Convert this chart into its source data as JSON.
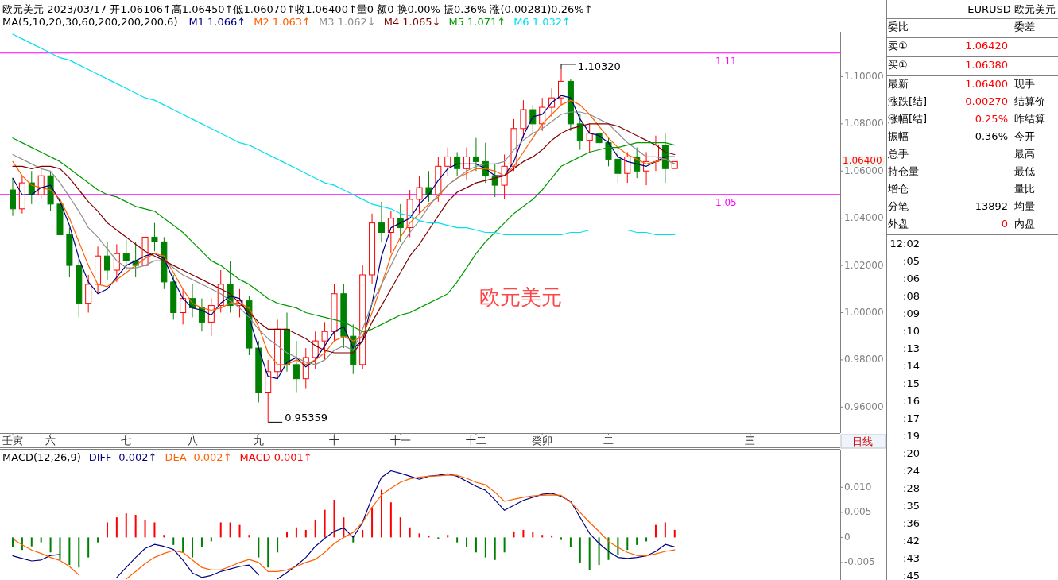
{
  "chart_data": [
    {
      "type": "candlestick",
      "title": "欧元美元 2023/03/17 开1.06106↑高1.06450↑低1.06070↑收1.06400↑量0 额0 换0.00% 振0.36% 涨(0.00281)0.26%↑",
      "subtitle": "MA(5,10,20,30,60,200,200,200,6)",
      "legend": "top",
      "categories": [
        "壬寅",
        null,
        null,
        null,
        "六",
        null,
        null,
        null,
        null,
        null,
        null,
        null,
        "七",
        null,
        null,
        null,
        null,
        null,
        null,
        "八",
        null,
        null,
        null,
        null,
        null,
        null,
        "九",
        null,
        null,
        null,
        null,
        null,
        null,
        null,
        "十",
        null,
        null,
        null,
        null,
        null,
        null,
        "十一",
        null,
        null,
        null,
        null,
        null,
        null,
        null,
        "十二",
        null,
        null,
        null,
        null,
        null,
        null,
        "癸卯",
        null,
        null,
        null,
        null,
        null,
        null,
        "二",
        null,
        null,
        null,
        null,
        null,
        null,
        null,
        null,
        null,
        null,
        null,
        null,
        null,
        null,
        "三",
        null,
        null,
        null,
        null,
        null,
        null,
        null,
        null,
        null
      ],
      "ylim": [
        0.949,
        1.119
      ],
      "yticks": [
        {
          "value": 1.1,
          "label": "1.10000"
        },
        {
          "value": 1.08,
          "label": "1.08000"
        },
        {
          "value": 1.06,
          "label": "1.06000"
        },
        {
          "value": 1.04,
          "label": "1.04000"
        },
        {
          "value": 1.02,
          "label": "1.02000"
        },
        {
          "value": 1.0,
          "label": "1.00000"
        },
        {
          "value": 0.98,
          "label": "0.98000"
        },
        {
          "value": 0.96,
          "label": "0.96000"
        }
      ],
      "ohlc": [
        [
          1.052,
          1.057,
          1.041,
          1.044
        ],
        [
          1.044,
          1.058,
          1.042,
          1.055
        ],
        [
          1.055,
          1.06,
          1.046,
          1.05
        ],
        [
          1.05,
          1.062,
          1.048,
          1.058
        ],
        [
          1.058,
          1.06,
          1.043,
          1.046
        ],
        [
          1.046,
          1.049,
          1.03,
          1.033
        ],
        [
          1.033,
          1.036,
          1.015,
          1.02
        ],
        [
          1.02,
          1.024,
          0.998,
          1.004
        ],
        [
          1.004,
          1.016,
          1.0,
          1.012
        ],
        [
          1.012,
          1.028,
          1.008,
          1.024
        ],
        [
          1.024,
          1.03,
          1.014,
          1.018
        ],
        [
          1.018,
          1.029,
          1.013,
          1.025
        ],
        [
          1.025,
          1.031,
          1.018,
          1.022
        ],
        [
          1.022,
          1.03,
          1.015,
          1.02
        ],
        [
          1.02,
          1.036,
          1.017,
          1.032
        ],
        [
          1.032,
          1.038,
          1.026,
          1.03
        ],
        [
          1.03,
          1.032,
          1.01,
          1.013
        ],
        [
          1.013,
          1.016,
          0.997,
          1.0
        ],
        [
          1.0,
          1.01,
          0.995,
          1.006
        ],
        [
          1.006,
          1.012,
          0.998,
          1.002
        ],
        [
          1.002,
          1.006,
          0.992,
          0.996
        ],
        [
          0.996,
          1.006,
          0.99,
          1.003
        ],
        [
          1.003,
          1.018,
          1.0,
          1.012
        ],
        [
          1.012,
          1.022,
          1.0,
          1.003
        ],
        [
          1.003,
          1.01,
          0.998,
          1.005
        ],
        [
          1.005,
          1.007,
          0.982,
          0.985
        ],
        [
          0.985,
          0.988,
          0.962,
          0.966
        ],
        [
          0.966,
          0.98,
          0.95359,
          0.975
        ],
        [
          0.975,
          0.997,
          0.972,
          0.993
        ],
        [
          0.993,
          1.0,
          0.975,
          0.978
        ],
        [
          0.978,
          0.988,
          0.966,
          0.972
        ],
        [
          0.972,
          0.985,
          0.968,
          0.981
        ],
        [
          0.981,
          0.992,
          0.976,
          0.988
        ],
        [
          0.988,
          0.996,
          0.98,
          0.992
        ],
        [
          0.992,
          1.012,
          0.988,
          1.008
        ],
        [
          1.008,
          1.012,
          0.985,
          0.99
        ],
        [
          0.99,
          0.995,
          0.974,
          0.978
        ],
        [
          0.978,
          1.02,
          0.976,
          1.016
        ],
        [
          1.016,
          1.042,
          1.012,
          1.038
        ],
        [
          1.038,
          1.047,
          1.03,
          1.034
        ],
        [
          1.034,
          1.043,
          1.025,
          1.04
        ],
        [
          1.04,
          1.046,
          1.03,
          1.036
        ],
        [
          1.036,
          1.052,
          1.032,
          1.048
        ],
        [
          1.048,
          1.058,
          1.042,
          1.053
        ],
        [
          1.053,
          1.06,
          1.047,
          1.05
        ],
        [
          1.05,
          1.066,
          1.047,
          1.062
        ],
        [
          1.062,
          1.07,
          1.058,
          1.066
        ],
        [
          1.066,
          1.068,
          1.058,
          1.061
        ],
        [
          1.061,
          1.07,
          1.056,
          1.066
        ],
        [
          1.066,
          1.074,
          1.06,
          1.064
        ],
        [
          1.064,
          1.072,
          1.055,
          1.058
        ],
        [
          1.058,
          1.063,
          1.049,
          1.054
        ],
        [
          1.054,
          1.067,
          1.048,
          1.062
        ],
        [
          1.062,
          1.082,
          1.06,
          1.078
        ],
        [
          1.078,
          1.09,
          1.074,
          1.086
        ],
        [
          1.086,
          1.088,
          1.076,
          1.08
        ],
        [
          1.08,
          1.091,
          1.077,
          1.087
        ],
        [
          1.087,
          1.095,
          1.083,
          1.091
        ],
        [
          1.091,
          1.1032,
          1.088,
          1.098
        ],
        [
          1.098,
          1.099,
          1.077,
          1.08
        ],
        [
          1.08,
          1.084,
          1.069,
          1.073
        ],
        [
          1.073,
          1.08,
          1.068,
          1.076
        ],
        [
          1.076,
          1.082,
          1.07,
          1.072
        ],
        [
          1.072,
          1.074,
          1.062,
          1.065
        ],
        [
          1.065,
          1.069,
          1.055,
          1.059
        ],
        [
          1.059,
          1.068,
          1.055,
          1.066
        ],
        [
          1.066,
          1.07,
          1.057,
          1.06
        ],
        [
          1.06,
          1.068,
          1.054,
          1.064
        ],
        [
          1.064,
          1.075,
          1.06,
          1.071
        ],
        [
          1.071,
          1.076,
          1.055,
          1.061
        ],
        [
          1.06106,
          1.0645,
          1.0607,
          1.064
        ],
        null,
        null,
        null,
        null,
        null,
        null,
        null,
        null,
        null,
        null,
        null,
        null,
        null,
        null,
        null,
        null,
        null
      ],
      "series": [
        {
          "name": "M1 1.066↑",
          "type": "line",
          "color": "#000080",
          "values": [
            1.057,
            1.05,
            1.05,
            1.053,
            1.054,
            1.047,
            1.037,
            1.023,
            1.013,
            1.008,
            1.01,
            1.015,
            1.02,
            1.022,
            1.024,
            1.025,
            1.023,
            1.014,
            1.006,
            1.002,
            1.001,
            0.999,
            1.004,
            1.007,
            1.006,
            0.998,
            0.985,
            0.973,
            0.972,
            0.979,
            0.981,
            0.977,
            0.98,
            0.986,
            0.992,
            0.994,
            0.985,
            0.988,
            1.004,
            1.024,
            1.036,
            1.038,
            1.04,
            1.046,
            1.05,
            1.056,
            1.061,
            1.063,
            1.063,
            1.063,
            1.061,
            1.058,
            1.058,
            1.064,
            1.075,
            1.083,
            1.084,
            1.089,
            1.092,
            1.091,
            1.082,
            1.076,
            1.075,
            1.072,
            1.066,
            1.064,
            1.063,
            1.062,
            1.064,
            1.066,
            1.066,
            null,
            null,
            null,
            null,
            null,
            null,
            null,
            null,
            null,
            null,
            null,
            null,
            null,
            null,
            null,
            null,
            null
          ]
        },
        {
          "name": "M2 1.063↑",
          "type": "line",
          "color": "#ff6000",
          "values": [
            1.064,
            1.058,
            1.054,
            1.053,
            1.052,
            1.048,
            1.04,
            1.03,
            1.02,
            1.012,
            1.011,
            1.014,
            1.017,
            1.02,
            1.023,
            1.025,
            1.024,
            1.017,
            1.01,
            1.004,
            1.002,
            1.001,
            1.002,
            1.004,
            1.004,
            1.002,
            0.994,
            0.983,
            0.978,
            0.978,
            0.98,
            0.978,
            0.98,
            0.983,
            0.988,
            0.99,
            0.988,
            0.99,
            1.0,
            1.012,
            1.024,
            1.032,
            1.038,
            1.042,
            1.046,
            1.049,
            1.054,
            1.057,
            1.059,
            1.061,
            1.061,
            1.06,
            1.058,
            1.062,
            1.068,
            1.074,
            1.08,
            1.084,
            1.088,
            1.09,
            1.088,
            1.084,
            1.079,
            1.074,
            1.07,
            1.067,
            1.065,
            1.063,
            1.064,
            1.065,
            1.063,
            null,
            null,
            null,
            null,
            null,
            null,
            null,
            null,
            null,
            null,
            null,
            null,
            null,
            null,
            null,
            null,
            null
          ]
        },
        {
          "name": "M3 1.062↓",
          "type": "line",
          "color": "#909090",
          "values": [
            1.067,
            1.065,
            1.063,
            1.061,
            1.06,
            1.055,
            1.049,
            1.043,
            1.036,
            1.032,
            1.027,
            1.022,
            1.019,
            1.019,
            1.02,
            1.022,
            1.022,
            1.019,
            1.016,
            1.014,
            1.012,
            1.01,
            1.008,
            1.005,
            1.002,
            0.998,
            0.993,
            0.989,
            0.986,
            0.983,
            0.981,
            0.979,
            0.978,
            0.98,
            0.984,
            0.986,
            0.984,
            0.993,
            1.004,
            1.012,
            1.02,
            1.028,
            1.034,
            1.039,
            1.045,
            1.05,
            1.054,
            1.057,
            1.06,
            1.062,
            1.063,
            1.063,
            1.064,
            1.069,
            1.073,
            1.076,
            1.078,
            1.081,
            1.084,
            1.085,
            1.085,
            1.084,
            1.082,
            1.08,
            1.076,
            1.072,
            1.069,
            1.066,
            1.066,
            1.065,
            1.063,
            null,
            null,
            null,
            null,
            null,
            null,
            null,
            null,
            null,
            null,
            null,
            null,
            null,
            null,
            null,
            null,
            null
          ]
        },
        {
          "name": "M4 1.065↓",
          "type": "line",
          "color": "#800000",
          "values": [
            1.062,
            1.062,
            1.061,
            1.062,
            1.062,
            1.061,
            1.057,
            1.052,
            1.047,
            1.043,
            1.038,
            1.035,
            1.032,
            1.029,
            1.026,
            1.024,
            1.022,
            1.02,
            1.018,
            1.016,
            1.014,
            1.012,
            1.01,
            1.008,
            1.004,
            1.0,
            0.996,
            0.993,
            0.993,
            0.993,
            0.991,
            0.989,
            0.986,
            0.984,
            0.983,
            0.983,
            0.983,
            0.988,
            0.996,
            1.003,
            1.01,
            1.017,
            1.024,
            1.029,
            1.035,
            1.041,
            1.047,
            1.051,
            1.053,
            1.055,
            1.056,
            1.057,
            1.058,
            1.061,
            1.064,
            1.066,
            1.069,
            1.073,
            1.076,
            1.078,
            1.079,
            1.08,
            1.08,
            1.08,
            1.079,
            1.077,
            1.075,
            1.073,
            1.071,
            1.068,
            1.067,
            null,
            null,
            null,
            null,
            null,
            null,
            null,
            null,
            null,
            null,
            null,
            null,
            null,
            null,
            null,
            null,
            null
          ]
        },
        {
          "name": "M5 1.071↑",
          "type": "line",
          "color": "#009a00",
          "values": [
            1.074,
            1.072,
            1.07,
            1.068,
            1.066,
            1.064,
            1.061,
            1.058,
            1.055,
            1.052,
            1.05,
            1.049,
            1.047,
            1.045,
            1.044,
            1.043,
            1.04,
            1.037,
            1.034,
            1.03,
            1.026,
            1.022,
            1.02,
            1.017,
            1.014,
            1.012,
            1.009,
            1.006,
            1.004,
            1.003,
            1.002,
            1.0,
            0.999,
            0.998,
            0.997,
            0.996,
            0.994,
            0.992,
            0.993,
            0.995,
            0.997,
            0.999,
            1.0,
            1.002,
            1.004,
            1.006,
            1.008,
            1.013,
            1.019,
            1.025,
            1.03,
            1.034,
            1.038,
            1.042,
            1.045,
            1.048,
            1.052,
            1.057,
            1.062,
            1.064,
            1.066,
            1.068,
            1.069,
            1.07,
            1.07,
            1.071,
            1.072,
            1.072,
            1.072,
            1.072,
            1.071,
            null,
            null,
            null,
            null,
            null,
            null,
            null,
            null,
            null,
            null,
            null,
            null,
            null,
            null,
            null,
            null,
            null
          ]
        },
        {
          "name": "M6 1.032↑",
          "type": "line",
          "color": "#00e0f0",
          "values": [
            1.118,
            1.116,
            1.114,
            1.112,
            1.11,
            1.108,
            1.107,
            1.105,
            1.103,
            1.101,
            1.099,
            1.097,
            1.095,
            1.093,
            1.091,
            1.09,
            1.088,
            1.086,
            1.084,
            1.082,
            1.08,
            1.078,
            1.076,
            1.074,
            1.072,
            1.071,
            1.069,
            1.067,
            1.065,
            1.063,
            1.061,
            1.059,
            1.057,
            1.055,
            1.054,
            1.052,
            1.05,
            1.048,
            1.046,
            1.045,
            1.044,
            1.042,
            1.041,
            1.039,
            1.038,
            1.038,
            1.037,
            1.036,
            1.036,
            1.035,
            1.034,
            1.034,
            1.033,
            1.033,
            1.033,
            1.033,
            1.033,
            1.033,
            1.033,
            1.034,
            1.034,
            1.035,
            1.035,
            1.035,
            1.035,
            1.035,
            1.034,
            1.034,
            1.033,
            1.033,
            1.033,
            null,
            null,
            null,
            null,
            null,
            null,
            null,
            null,
            null,
            null,
            null,
            null,
            null,
            null,
            null,
            null,
            null
          ]
        }
      ],
      "ref_lines": [
        {
          "axis": "y",
          "value": 1.11,
          "label": "1.11",
          "color": "#ff00ff"
        },
        {
          "axis": "y",
          "value": 1.05,
          "label": "1.05",
          "color": "#ff00ff"
        }
      ],
      "annotations": [
        "欧元美元",
        "日线",
        "1.10320",
        "0.95359",
        "1.06400"
      ]
    },
    {
      "type": "bar",
      "title": "MACD(12,26,9)",
      "legend": "top left",
      "tick_labels": "y",
      "categories": [
        null,
        null,
        null,
        null,
        null,
        null,
        null,
        null,
        null,
        null,
        null,
        null,
        null,
        null,
        null,
        null,
        null,
        null,
        null,
        null,
        null,
        null,
        null,
        null,
        null,
        null,
        null,
        null,
        null,
        null,
        null,
        null,
        null,
        null,
        null,
        null,
        null,
        null,
        null,
        null,
        null,
        null,
        null,
        null,
        null,
        null,
        null,
        null,
        null,
        null,
        null,
        null,
        null,
        null,
        null,
        null,
        null,
        null,
        null,
        null,
        null,
        null,
        null,
        null,
        null,
        null,
        null,
        null,
        null,
        null,
        null,
        null,
        null,
        null,
        null,
        null,
        null,
        null,
        null,
        null,
        null,
        null,
        null,
        null,
        null,
        null,
        null,
        null
      ],
      "ylim": [
        -0.0085,
        0.0175
      ],
      "yticks": [
        {
          "value": 0.01,
          "label": "0.010"
        },
        {
          "value": 0.005,
          "label": "0.005"
        },
        0,
        {
          "value": -0.005,
          "label": "-0.005"
        }
      ],
      "series": [
        {
          "name": "DIFF -0.002↑",
          "type": "line",
          "color": "#000080",
          "values": [
            -0.0037,
            -0.0042,
            -0.0047,
            -0.0045,
            -0.0036,
            -0.0034,
            null,
            null,
            null,
            null,
            null,
            -0.008,
            -0.006,
            -0.004,
            -0.0022,
            -0.0014,
            -0.0018,
            -0.0024,
            -0.0045,
            -0.0071,
            -0.008,
            -0.0076,
            -0.0068,
            -0.0063,
            -0.0058,
            -0.0055,
            -0.0075,
            null,
            -0.0083,
            -0.007,
            -0.0056,
            -0.004,
            -0.0018,
            -0.0002,
            0.0012,
            0.0019,
            0.0,
            0.003,
            0.008,
            0.012,
            0.0133,
            0.0128,
            0.0122,
            0.0116,
            0.0122,
            0.0124,
            0.0127,
            0.0122,
            0.0112,
            0.0102,
            0.0094,
            0.0075,
            0.0054,
            0.0064,
            0.0074,
            0.008,
            0.0086,
            0.0088,
            0.0082,
            0.0072,
            0.004,
            0.0008,
            -0.0012,
            -0.0028,
            -0.004,
            -0.0042,
            -0.004,
            -0.0037,
            -0.0028,
            -0.0014,
            -0.0019,
            null,
            null,
            null,
            null,
            null,
            null,
            null,
            null,
            null,
            null,
            null,
            null,
            null,
            null,
            null,
            null,
            null
          ]
        },
        {
          "name": "DEA -0.002↑",
          "type": "line",
          "color": "#ff6000",
          "values": [
            -0.0003,
            -0.0015,
            -0.0025,
            -0.0032,
            -0.004,
            -0.0046,
            -0.0058,
            -0.0075,
            null,
            null,
            null,
            null,
            -0.0083,
            -0.0068,
            -0.0052,
            -0.004,
            -0.0032,
            -0.0026,
            -0.003,
            -0.0045,
            -0.006,
            -0.0065,
            -0.0065,
            -0.0058,
            -0.005,
            -0.0044,
            -0.005,
            -0.0068,
            -0.0068,
            -0.0065,
            -0.0058,
            -0.005,
            -0.0044,
            -0.003,
            -0.0012,
            0.0,
            0.001,
            0.003,
            0.006,
            0.0085,
            0.0098,
            0.011,
            0.0117,
            0.012,
            0.0122,
            0.0123,
            0.0124,
            0.0124,
            0.0118,
            0.011,
            0.0105,
            0.009,
            0.0072,
            0.0076,
            0.008,
            0.0083,
            0.0084,
            0.0085,
            0.0084,
            0.007,
            0.005,
            0.003,
            0.0012,
            -0.0008,
            -0.002,
            -0.003,
            -0.0036,
            -0.0037,
            -0.0033,
            -0.0028,
            -0.0025,
            null,
            null,
            null,
            null,
            null,
            null,
            null,
            null,
            null,
            null,
            null,
            null,
            null,
            null,
            null,
            null,
            null
          ]
        },
        {
          "name": "MACD 0.001↑",
          "type": "bar",
          "values": [
            -0.002,
            -0.0025,
            -0.0018,
            -0.001,
            -0.003,
            -0.0045,
            -0.0055,
            -0.006,
            -0.004,
            -0.001,
            0.003,
            0.004,
            0.0048,
            0.0045,
            0.0035,
            0.003,
            0.0005,
            -0.0015,
            -0.003,
            -0.004,
            -0.002,
            -0.0008,
            0.003,
            0.003,
            0.0025,
            0.0005,
            -0.004,
            -0.006,
            -0.003,
            0.001,
            0.002,
            0.0015,
            0.0035,
            0.0055,
            0.0075,
            0.004,
            -0.001,
            0.0015,
            0.006,
            0.0095,
            0.007,
            0.004,
            0.002,
            0.0008,
            0.0003,
            -0.0003,
            0.0005,
            -0.001,
            -0.002,
            -0.003,
            -0.004,
            -0.0045,
            -0.003,
            0.0012,
            0.0015,
            0.001,
            0.0005,
            0.0004,
            -0.0005,
            -0.002,
            -0.005,
            -0.0065,
            -0.0055,
            -0.0045,
            -0.0035,
            -0.0025,
            -0.0015,
            -0.0008,
            0.0025,
            0.003,
            0.0015,
            null,
            null,
            null,
            null,
            null,
            null,
            null,
            null,
            null,
            null,
            null,
            null,
            null,
            null,
            null,
            null,
            null
          ],
          "colors": [
            "#008000",
            "#008000",
            "#008000",
            "#008000",
            "#008000",
            "#008000",
            "#008000",
            "#008000",
            "#008000",
            "#008000",
            "#ff0000",
            "#ff0000",
            "#ff0000",
            "#ff0000",
            "#ff0000",
            "#ff0000",
            "#ff0000",
            "#008000",
            "#008000",
            "#008000",
            "#008000",
            "#008000",
            "#ff0000",
            "#ff0000",
            "#ff0000",
            "#ff0000",
            "#008000",
            "#008000",
            "#008000",
            "#ff0000",
            "#ff0000",
            "#ff0000",
            "#ff0000",
            "#ff0000",
            "#ff0000",
            "#ff0000",
            "#008000",
            "#ff0000",
            "#ff0000",
            "#ff0000",
            "#ff0000",
            "#ff0000",
            "#ff0000",
            "#ff0000",
            "#ff0000",
            "#008000",
            "#ff0000",
            "#008000",
            "#008000",
            "#008000",
            "#008000",
            "#008000",
            "#008000",
            "#ff0000",
            "#ff0000",
            "#ff0000",
            "#ff0000",
            "#ff0000",
            "#008000",
            "#008000",
            "#008000",
            "#008000",
            "#008000",
            "#008000",
            "#008000",
            "#008000",
            "#008000",
            "#008000",
            "#ff0000",
            "#ff0000",
            "#ff0000",
            null,
            null,
            null,
            null,
            null,
            null,
            null,
            null,
            null,
            null,
            null,
            null,
            null,
            null,
            null,
            null,
            null
          ]
        }
      ]
    },
    {
      "type": "other",
      "title": "EURUSD 欧元美元",
      "categories": [
        "委比",
        "卖①",
        "买①",
        "最新",
        "涨跌[结]",
        "涨幅[结]",
        "振幅",
        "总手",
        "持仓量",
        "增仓",
        "分笔",
        "外盘"
      ],
      "value_labels": [
        null,
        "1.06420",
        "1.06380",
        "1.06400",
        "0.00270",
        "0.25%",
        "0.36%",
        null,
        null,
        null,
        "13892",
        "0"
      ],
      "colors": [
        null,
        "#ff0000",
        "#ff0000",
        "#ff0000",
        "#ff0000",
        "#ff0000",
        "#000000",
        null,
        null,
        null,
        "#000000",
        "#ff0000"
      ],
      "y2_categories": [
        "委差",
        null,
        null,
        "现手",
        "结算价",
        "昨结算",
        "今开",
        "最高",
        "最低",
        "量比",
        "均量",
        "内盘"
      ]
    },
    {
      "type": "other",
      "annotations": [
        "12:02",
        ":05",
        ":06",
        ":08",
        ":09",
        ":10",
        ":13",
        ":14",
        ":15",
        ":16",
        ":17",
        ":19",
        ":20",
        ":24",
        ":28",
        ":35",
        ":36",
        ":42",
        ":43",
        ":45"
      ]
    }
  ]
}
